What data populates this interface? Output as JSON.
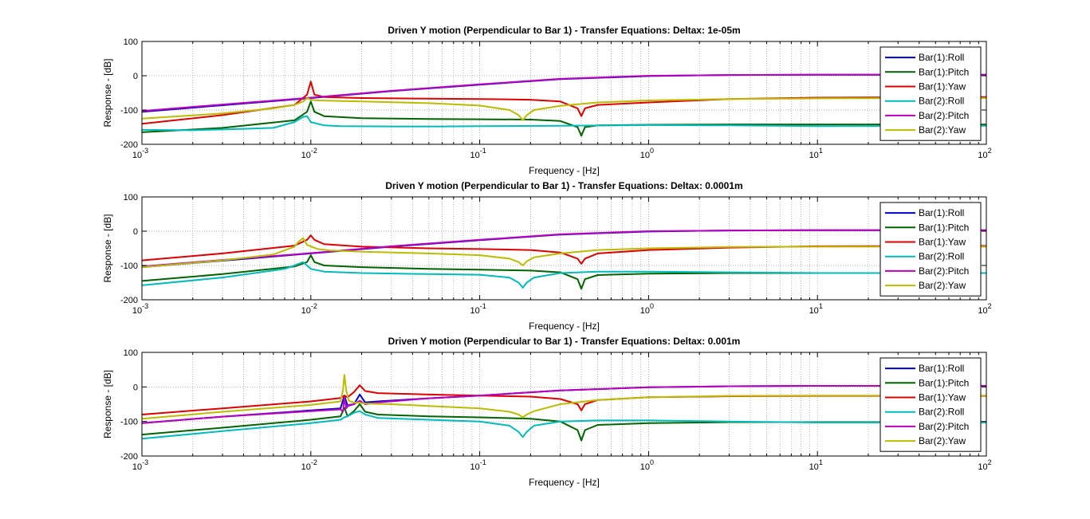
{
  "figure": {
    "background": "#ffffff",
    "axes_background": "#ffffff"
  },
  "chart_data": [
    {
      "type": "line",
      "title": "Driven Y motion (Perpendicular to Bar 1) - Transfer Equations: Deltax: 1e-05m",
      "xlabel": "Frequency - [Hz]",
      "ylabel": "Response - [dB]",
      "xscale": "log",
      "xlim": [
        0.001,
        100
      ],
      "ylim": [
        -200,
        100
      ],
      "xtick_values": [
        0.001,
        0.01,
        0.1,
        1,
        10,
        100
      ],
      "xtick_bases": [
        "10",
        "10",
        "10",
        "10",
        "10",
        "10"
      ],
      "xtick_exps": [
        "-3",
        "-2",
        "-1",
        "0",
        "1",
        "2"
      ],
      "ytick_values": [
        100,
        0,
        -100,
        -200
      ],
      "yticks": [
        "100",
        "0",
        "-100",
        "-200"
      ],
      "grid": true,
      "legend_position": "top-right",
      "series": [
        {
          "name": "Bar(1):Roll",
          "color": "#0000cc",
          "x": [
            0.001,
            0.003,
            0.01,
            0.03,
            0.1,
            0.3,
            1,
            3,
            10,
            100
          ],
          "y": [
            -105,
            -86,
            -65,
            -45,
            -26,
            -10,
            -1,
            2,
            3,
            3
          ]
        },
        {
          "name": "Bar(1):Pitch",
          "color": "#006400",
          "x": [
            0.001,
            0.003,
            0.008,
            0.0095,
            0.01,
            0.0105,
            0.012,
            0.02,
            0.05,
            0.1,
            0.2,
            0.3,
            0.38,
            0.4,
            0.42,
            0.5,
            1,
            3,
            10,
            100
          ],
          "y": [
            -165,
            -152,
            -130,
            -105,
            -75,
            -105,
            -118,
            -124,
            -126,
            -127,
            -128,
            -132,
            -150,
            -175,
            -150,
            -145,
            -143,
            -142,
            -142,
            -142
          ]
        },
        {
          "name": "Bar(1):Yaw",
          "color": "#dd0000",
          "x": [
            0.001,
            0.003,
            0.008,
            0.0095,
            0.01,
            0.0105,
            0.012,
            0.02,
            0.05,
            0.1,
            0.2,
            0.3,
            0.38,
            0.4,
            0.42,
            0.5,
            1,
            3,
            10,
            100
          ],
          "y": [
            -140,
            -115,
            -85,
            -55,
            -17,
            -55,
            -62,
            -65,
            -67,
            -68,
            -70,
            -75,
            -95,
            -118,
            -95,
            -85,
            -78,
            -68,
            -64,
            -62
          ]
        },
        {
          "name": "Bar(2):Roll",
          "color": "#00bbbb",
          "x": [
            0.001,
            0.002,
            0.004,
            0.006,
            0.008,
            0.009,
            0.0095,
            0.01,
            0.012,
            0.015,
            0.03,
            0.06,
            0.1,
            0.3,
            1,
            3,
            10,
            100
          ],
          "y": [
            -158,
            -159,
            -155,
            -152,
            -135,
            -120,
            -118,
            -135,
            -145,
            -147,
            -148,
            -148,
            -147,
            -146,
            -144,
            -145,
            -147,
            -146
          ]
        },
        {
          "name": "Bar(2):Pitch",
          "color": "#bb00bb",
          "x": [
            0.001,
            0.003,
            0.01,
            0.03,
            0.1,
            0.3,
            1,
            3,
            10,
            100
          ],
          "y": [
            -103,
            -84,
            -64,
            -44,
            -25,
            -9,
            0,
            2,
            3,
            3
          ]
        },
        {
          "name": "Bar(2):Yaw",
          "color": "#bbbb00",
          "x": [
            0.001,
            0.003,
            0.006,
            0.008,
            0.009,
            0.0095,
            0.01,
            0.011,
            0.013,
            0.02,
            0.05,
            0.1,
            0.15,
            0.17,
            0.18,
            0.19,
            0.21,
            0.3,
            0.5,
            1,
            3,
            10,
            100
          ],
          "y": [
            -125,
            -110,
            -95,
            -85,
            -75,
            -65,
            -70,
            -72,
            -73,
            -75,
            -80,
            -87,
            -100,
            -115,
            -130,
            -115,
            -100,
            -88,
            -78,
            -72,
            -68,
            -66,
            -65
          ]
        }
      ]
    },
    {
      "type": "line",
      "title": "Driven Y motion (Perpendicular to Bar 1) - Transfer Equations: Deltax: 0.0001m",
      "xlabel": "Frequency - [Hz]",
      "ylabel": "Response - [dB]",
      "xscale": "log",
      "xlim": [
        0.001,
        100
      ],
      "ylim": [
        -200,
        100
      ],
      "xtick_values": [
        0.001,
        0.01,
        0.1,
        1,
        10,
        100
      ],
      "xtick_bases": [
        "10",
        "10",
        "10",
        "10",
        "10",
        "10"
      ],
      "xtick_exps": [
        "-3",
        "-2",
        "-1",
        "0",
        "1",
        "2"
      ],
      "ytick_values": [
        100,
        0,
        -100,
        -200
      ],
      "yticks": [
        "100",
        "0",
        "-100",
        "-200"
      ],
      "grid": true,
      "legend_position": "top-right",
      "series": [
        {
          "name": "Bar(1):Roll",
          "color": "#0000cc",
          "x": [
            0.001,
            0.003,
            0.01,
            0.03,
            0.1,
            0.3,
            1,
            3,
            10,
            100
          ],
          "y": [
            -105,
            -86,
            -65,
            -45,
            -26,
            -10,
            -1,
            2,
            3,
            3
          ]
        },
        {
          "name": "Bar(1):Pitch",
          "color": "#006400",
          "x": [
            0.001,
            0.003,
            0.008,
            0.0095,
            0.01,
            0.0105,
            0.012,
            0.02,
            0.05,
            0.1,
            0.2,
            0.3,
            0.38,
            0.4,
            0.42,
            0.5,
            1,
            3,
            10,
            100
          ],
          "y": [
            -145,
            -125,
            -103,
            -90,
            -70,
            -90,
            -100,
            -105,
            -110,
            -112,
            -115,
            -120,
            -140,
            -168,
            -140,
            -128,
            -124,
            -122,
            -122,
            -122
          ]
        },
        {
          "name": "Bar(1):Yaw",
          "color": "#dd0000",
          "x": [
            0.001,
            0.003,
            0.008,
            0.0095,
            0.01,
            0.0105,
            0.012,
            0.02,
            0.05,
            0.1,
            0.2,
            0.3,
            0.38,
            0.4,
            0.42,
            0.5,
            1,
            3,
            10,
            100
          ],
          "y": [
            -85,
            -65,
            -42,
            -25,
            -12,
            -25,
            -38,
            -45,
            -50,
            -52,
            -55,
            -62,
            -80,
            -95,
            -80,
            -65,
            -55,
            -48,
            -44,
            -43
          ]
        },
        {
          "name": "Bar(2):Roll",
          "color": "#00bbbb",
          "x": [
            0.001,
            0.003,
            0.007,
            0.008,
            0.009,
            0.0095,
            0.01,
            0.012,
            0.02,
            0.05,
            0.1,
            0.15,
            0.17,
            0.18,
            0.19,
            0.21,
            0.3,
            0.5,
            1,
            3,
            10,
            100
          ],
          "y": [
            -158,
            -135,
            -110,
            -100,
            -90,
            -100,
            -110,
            -118,
            -122,
            -125,
            -127,
            -135,
            -150,
            -165,
            -150,
            -135,
            -122,
            -118,
            -118,
            -120,
            -122,
            -122
          ]
        },
        {
          "name": "Bar(2):Pitch",
          "color": "#bb00bb",
          "x": [
            0.001,
            0.003,
            0.01,
            0.03,
            0.1,
            0.3,
            1,
            3,
            10,
            100
          ],
          "y": [
            -103,
            -84,
            -64,
            -44,
            -25,
            -9,
            0,
            2,
            3,
            3
          ]
        },
        {
          "name": "Bar(2):Yaw",
          "color": "#bbbb00",
          "x": [
            0.001,
            0.003,
            0.006,
            0.008,
            0.0085,
            0.009,
            0.0095,
            0.011,
            0.013,
            0.02,
            0.05,
            0.1,
            0.15,
            0.17,
            0.18,
            0.19,
            0.21,
            0.3,
            0.5,
            1,
            3,
            10,
            100
          ],
          "y": [
            -105,
            -85,
            -68,
            -45,
            -30,
            -20,
            -40,
            -52,
            -56,
            -60,
            -65,
            -70,
            -80,
            -90,
            -100,
            -88,
            -76,
            -65,
            -55,
            -50,
            -46,
            -45,
            -45
          ]
        }
      ]
    },
    {
      "type": "line",
      "title": "Driven Y motion (Perpendicular to Bar 1) - Transfer Equations: Deltax: 0.001m",
      "xlabel": "Frequency - [Hz]",
      "ylabel": "Response - [dB]",
      "xscale": "log",
      "xlim": [
        0.001,
        100
      ],
      "ylim": [
        -200,
        100
      ],
      "xtick_values": [
        0.001,
        0.01,
        0.1,
        1,
        10,
        100
      ],
      "xtick_bases": [
        "10",
        "10",
        "10",
        "10",
        "10",
        "10"
      ],
      "xtick_exps": [
        "-3",
        "-2",
        "-1",
        "0",
        "1",
        "2"
      ],
      "ytick_values": [
        100,
        0,
        -100,
        -200
      ],
      "yticks": [
        "100",
        "0",
        "-100",
        "-200"
      ],
      "grid": true,
      "legend_position": "top-right",
      "series": [
        {
          "name": "Bar(1):Roll",
          "color": "#0000cc",
          "x": [
            0.001,
            0.003,
            0.01,
            0.015,
            0.0158,
            0.0165,
            0.018,
            0.0195,
            0.021,
            0.025,
            0.05,
            0.1,
            0.3,
            1,
            3,
            10,
            100
          ],
          "y": [
            -105,
            -86,
            -68,
            -62,
            -25,
            -55,
            -50,
            -22,
            -45,
            -42,
            -33,
            -25,
            -10,
            -1,
            2,
            3,
            3
          ]
        },
        {
          "name": "Bar(1):Pitch",
          "color": "#006400",
          "x": [
            0.001,
            0.003,
            0.01,
            0.015,
            0.0158,
            0.0165,
            0.018,
            0.0195,
            0.021,
            0.025,
            0.05,
            0.1,
            0.2,
            0.3,
            0.38,
            0.4,
            0.42,
            0.5,
            1,
            3,
            10,
            100
          ],
          "y": [
            -138,
            -118,
            -95,
            -85,
            -60,
            -85,
            -70,
            -50,
            -72,
            -80,
            -85,
            -88,
            -92,
            -100,
            -125,
            -155,
            -125,
            -110,
            -105,
            -102,
            -102,
            -102
          ]
        },
        {
          "name": "Bar(1):Yaw",
          "color": "#dd0000",
          "x": [
            0.001,
            0.003,
            0.01,
            0.015,
            0.0158,
            0.0165,
            0.018,
            0.0195,
            0.021,
            0.025,
            0.05,
            0.1,
            0.2,
            0.3,
            0.38,
            0.4,
            0.42,
            0.5,
            1,
            3,
            10,
            100
          ],
          "y": [
            -80,
            -62,
            -42,
            -32,
            -25,
            -30,
            -15,
            5,
            -12,
            -18,
            -22,
            -25,
            -28,
            -35,
            -50,
            -68,
            -50,
            -38,
            -30,
            -27,
            -26,
            -26
          ]
        },
        {
          "name": "Bar(2):Roll",
          "color": "#00bbbb",
          "x": [
            0.001,
            0.003,
            0.01,
            0.015,
            0.0158,
            0.0165,
            0.018,
            0.0195,
            0.021,
            0.025,
            0.05,
            0.1,
            0.15,
            0.17,
            0.18,
            0.19,
            0.21,
            0.3,
            0.5,
            1,
            3,
            10,
            100
          ],
          "y": [
            -150,
            -128,
            -105,
            -95,
            -88,
            -85,
            -75,
            -70,
            -80,
            -90,
            -95,
            -100,
            -112,
            -130,
            -145,
            -130,
            -112,
            -100,
            -97,
            -97,
            -100,
            -103,
            -103
          ]
        },
        {
          "name": "Bar(2):Pitch",
          "color": "#bb00bb",
          "x": [
            0.001,
            0.003,
            0.01,
            0.015,
            0.0155,
            0.0158,
            0.0162,
            0.0168,
            0.018,
            0.0195,
            0.021,
            0.025,
            0.05,
            0.1,
            0.3,
            1,
            3,
            10,
            100
          ],
          "y": [
            -105,
            -86,
            -70,
            -65,
            -72,
            -30,
            -62,
            -52,
            -50,
            -40,
            -50,
            -45,
            -33,
            -25,
            -10,
            -1,
            2,
            3,
            3
          ]
        },
        {
          "name": "Bar(2):Yaw",
          "color": "#bbbb00",
          "x": [
            0.001,
            0.003,
            0.01,
            0.015,
            0.0155,
            0.0158,
            0.0162,
            0.0168,
            0.018,
            0.021,
            0.03,
            0.05,
            0.1,
            0.15,
            0.17,
            0.18,
            0.19,
            0.21,
            0.3,
            0.5,
            1,
            3,
            10,
            100
          ],
          "y": [
            -92,
            -72,
            -52,
            -42,
            -10,
            35,
            -10,
            -40,
            -45,
            -48,
            -50,
            -55,
            -62,
            -72,
            -80,
            -88,
            -80,
            -70,
            -50,
            -38,
            -30,
            -26,
            -25,
            -25
          ]
        }
      ]
    }
  ]
}
